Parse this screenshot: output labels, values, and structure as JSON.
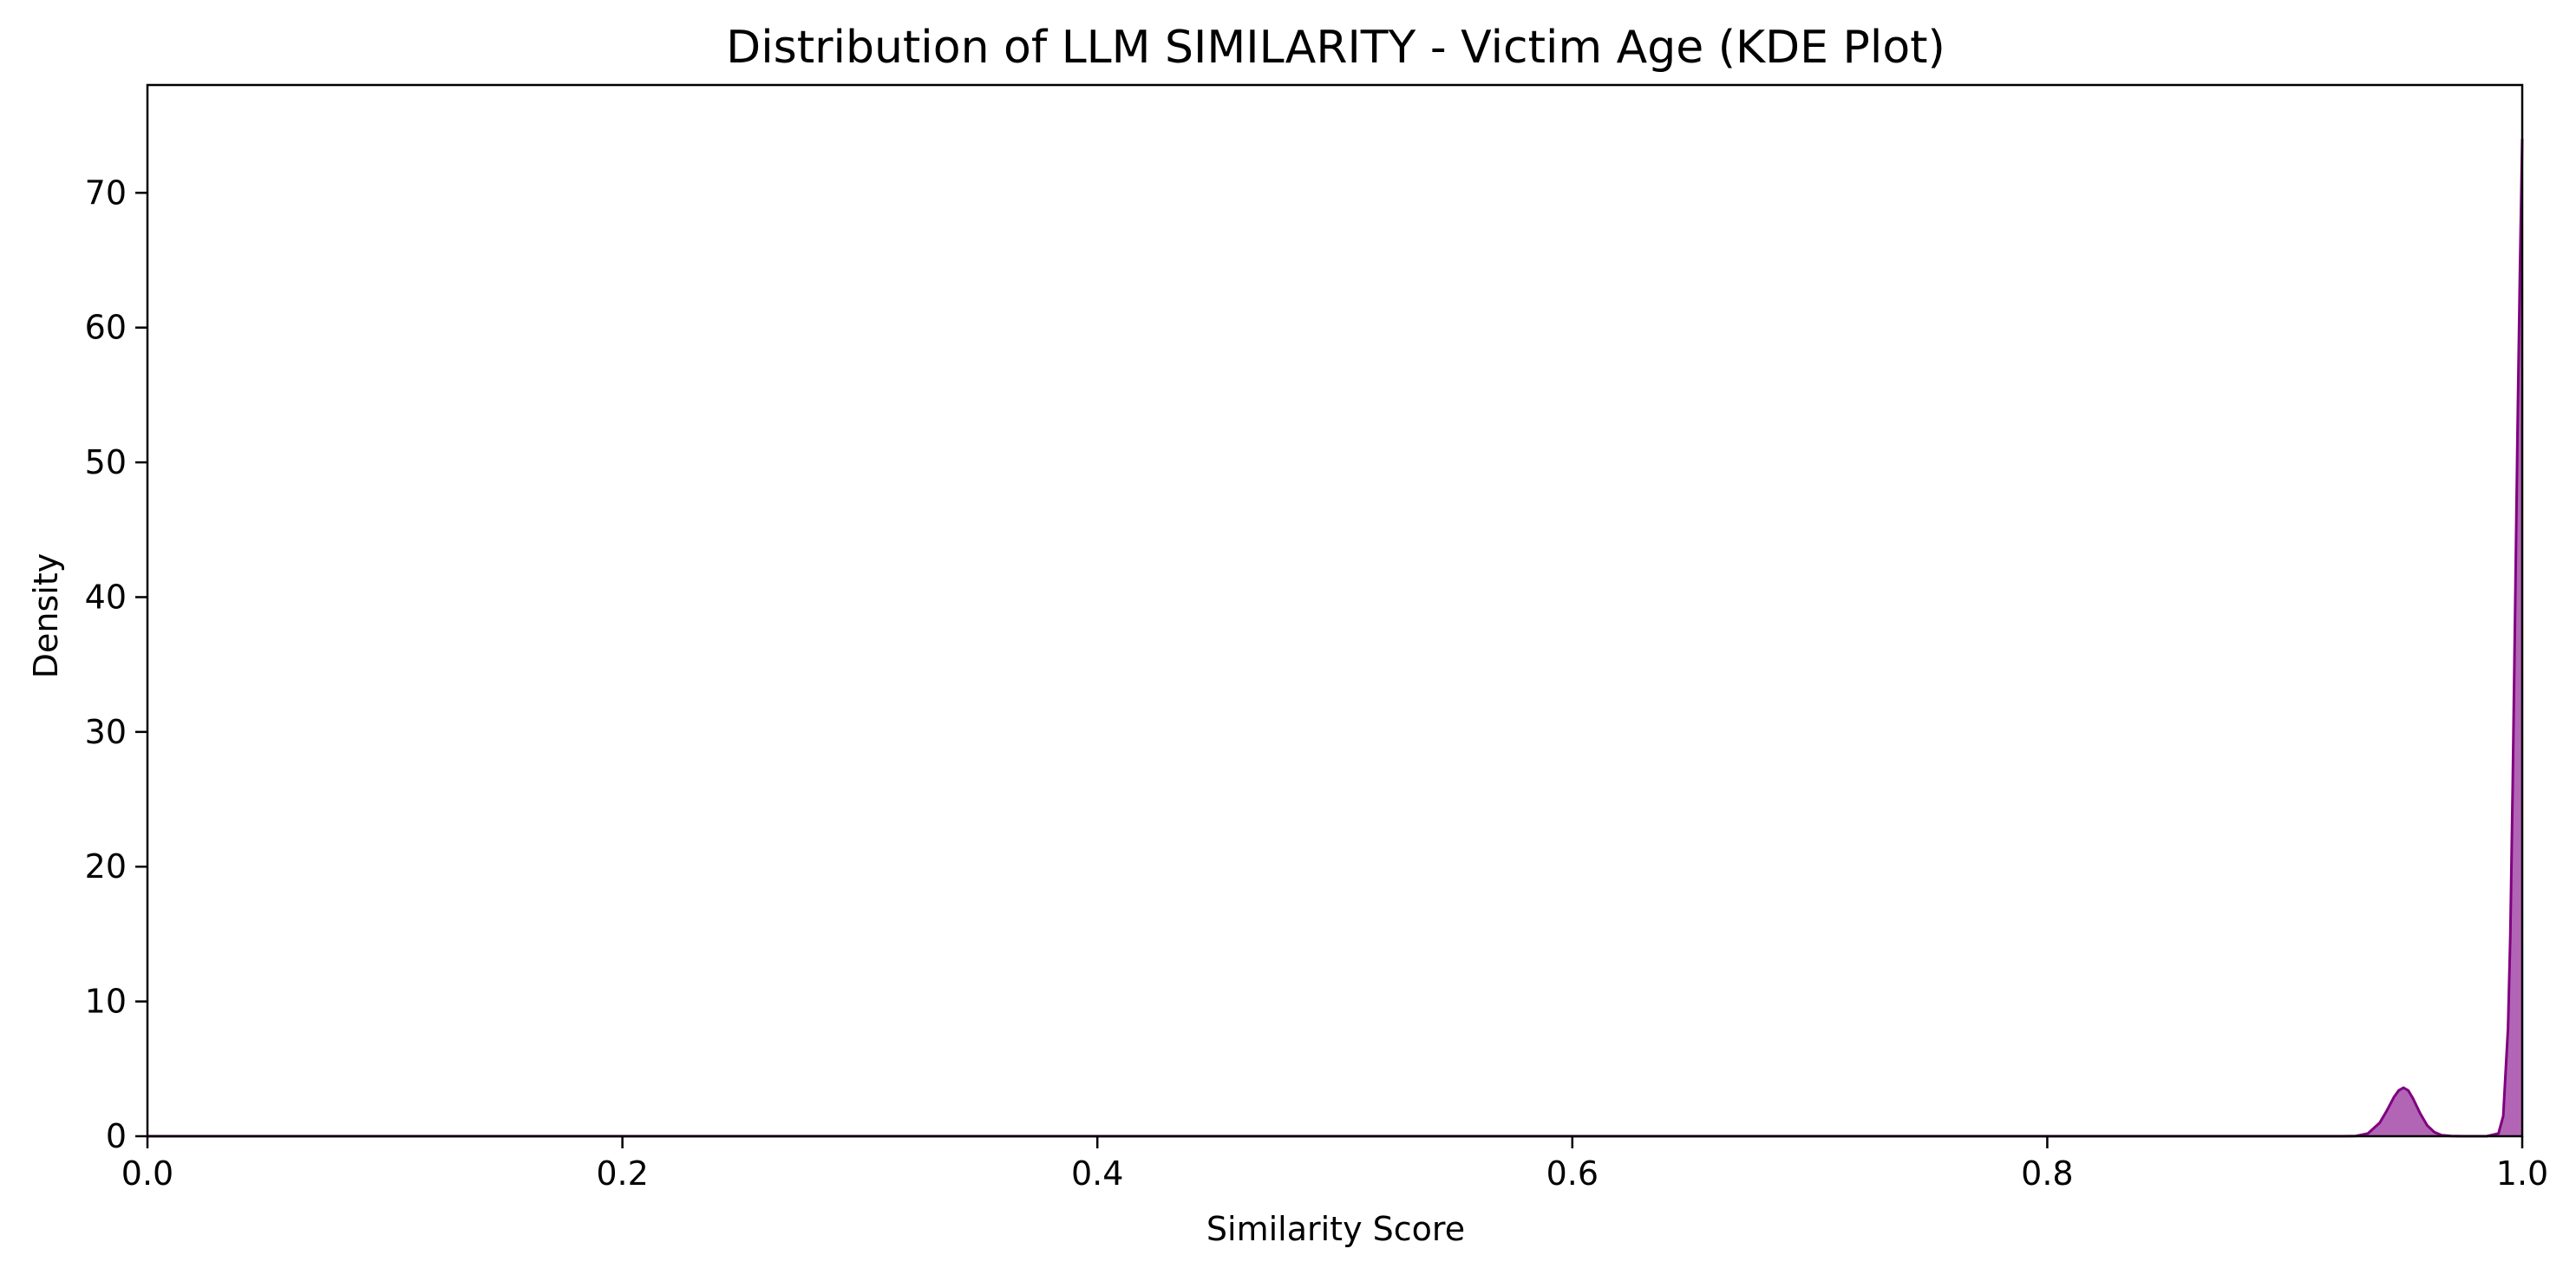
{
  "chart_data": {
    "type": "area",
    "title": "Distribution of LLM SIMILARITY - Victim Age (KDE Plot)",
    "xlabel": "Similarity Score",
    "ylabel": "Density",
    "xlim": [
      0.0,
      1.0
    ],
    "ylim": [
      0,
      78
    ],
    "xticks": [
      "0.0",
      "0.2",
      "0.4",
      "0.6",
      "0.8",
      "1.0"
    ],
    "yticks": [
      "0",
      "10",
      "20",
      "30",
      "40",
      "50",
      "60",
      "70"
    ],
    "grid": false,
    "legend": "none",
    "fill_color": "#a44aa8",
    "line_color": "#800080",
    "series": [
      {
        "x": [
          0.925,
          0.93,
          0.935,
          0.94,
          0.943,
          0.946,
          0.948,
          0.95,
          0.952,
          0.954,
          0.957,
          0.96,
          0.963,
          0.966,
          0.97,
          0.975,
          0.98,
          0.985,
          0.99,
          0.992,
          0.994,
          0.995,
          0.996,
          0.997,
          0.998,
          0.999,
          1.0
        ],
        "y": [
          0,
          0.02,
          0.2,
          1.0,
          1.9,
          2.9,
          3.4,
          3.6,
          3.4,
          2.8,
          1.7,
          0.8,
          0.3,
          0.08,
          0.01,
          0,
          0,
          0,
          0.2,
          1.5,
          8.0,
          15,
          26,
          39,
          52,
          64,
          74
        ]
      }
    ]
  }
}
